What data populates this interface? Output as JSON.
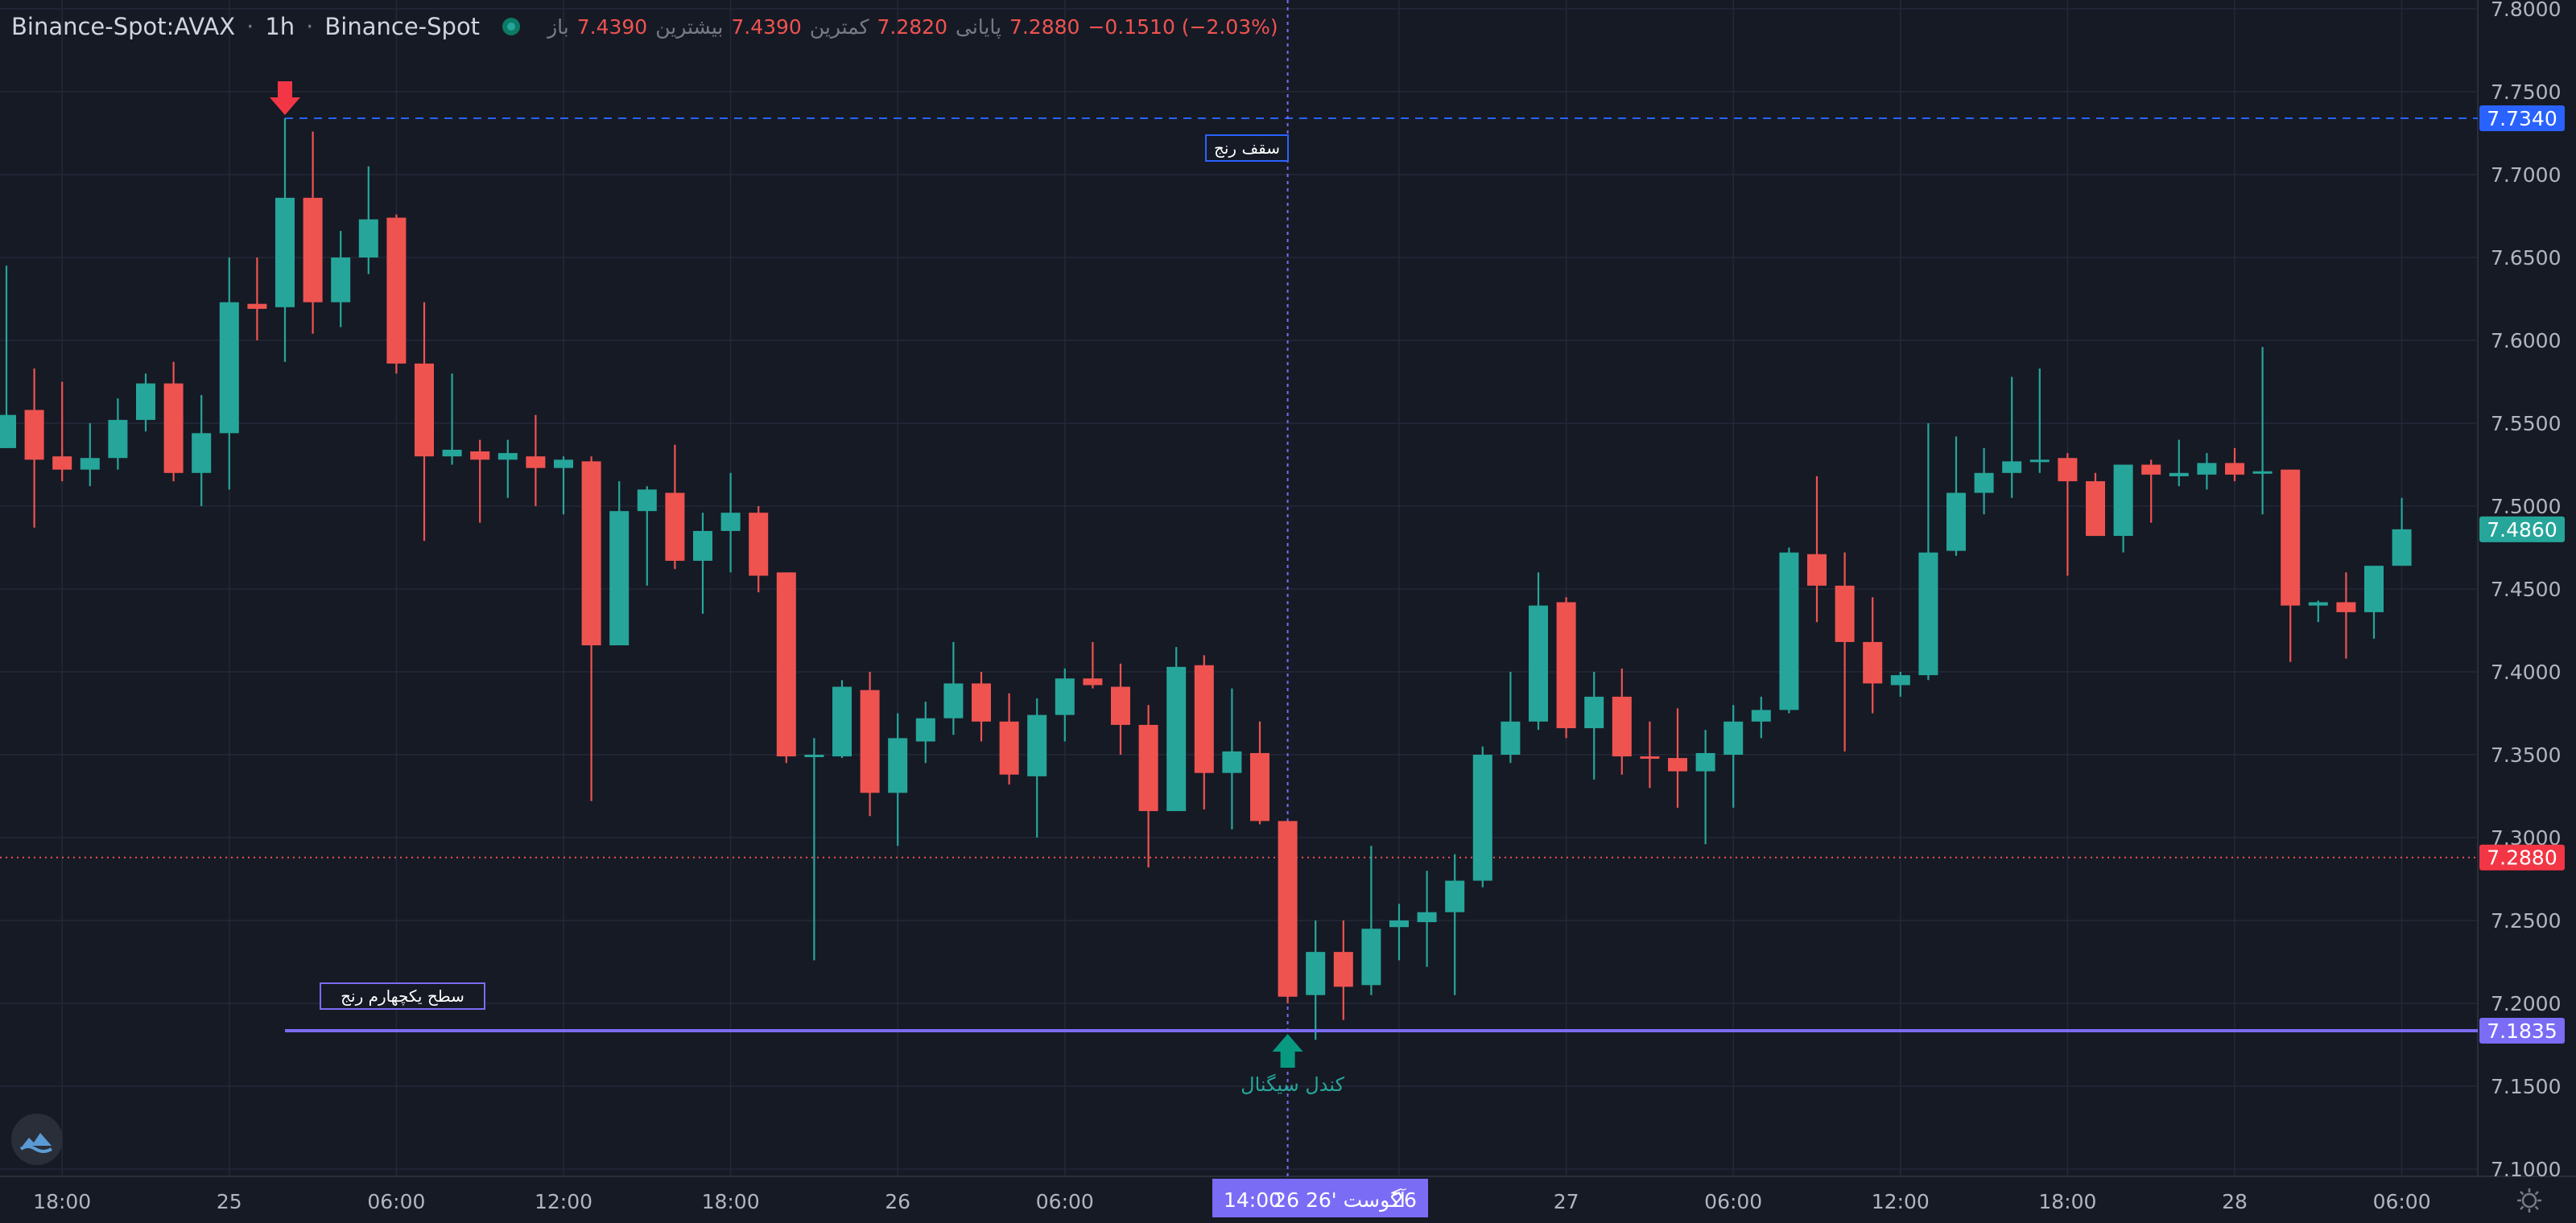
{
  "header": {
    "symbol": "Binance-Spot:AVAX",
    "interval": "1h",
    "exchange": "Binance-Spot",
    "ohlc": {
      "open_label": "باز",
      "open": "7.4390",
      "high_label": "بیشترین",
      "high": "7.4390",
      "low_label": "کمترین",
      "low": "7.2820",
      "close_label": "پایانی",
      "close": "7.2880",
      "change": "−0.1510 (−2.03%)"
    }
  },
  "colors": {
    "background": "#161a25",
    "grid": "#242838",
    "up": "#26a69a",
    "down": "#ef5350",
    "range_top": "#2962ff",
    "support": "#7b6cf6",
    "axis_text": "#b2b5be"
  },
  "icons": {
    "logo": "cloud-logo-icon",
    "settings": "gear-icon",
    "sell_arrow": "arrow-down-icon",
    "buy_arrow": "arrow-up-icon"
  },
  "annotations": {
    "range_top_label": "سقف رنج",
    "range_support_label": "سطح یکچهارم رنج",
    "signal_label": "کندل سیگنال"
  },
  "price_tags": {
    "range_top": "7.7340",
    "last": "7.4860",
    "current": "7.2880",
    "support": "7.1835"
  },
  "crosshair": {
    "time_left": "14:00",
    "date_label": "26 آگوست '26",
    "time_right": "26"
  },
  "chart_data": {
    "type": "candlestick",
    "interval": "1h",
    "ylim": [
      7.1,
      7.8
    ],
    "y_ticks": [
      "7.1000",
      "7.1500",
      "7.2000",
      "7.2500",
      "7.3000",
      "7.3500",
      "7.4000",
      "7.4500",
      "7.5000",
      "7.5500",
      "7.6000",
      "7.6500",
      "7.7000",
      "7.7500",
      "7.8000"
    ],
    "x_ticks": [
      {
        "index": 2,
        "label": "18:00"
      },
      {
        "index": 8,
        "label": "25"
      },
      {
        "index": 14,
        "label": "06:00"
      },
      {
        "index": 20,
        "label": "12:00"
      },
      {
        "index": 26,
        "label": "18:00"
      },
      {
        "index": 32,
        "label": "26"
      },
      {
        "index": 38,
        "label": "06:00"
      },
      {
        "index": 50,
        "label": "18:00"
      },
      {
        "index": 56,
        "label": "27"
      },
      {
        "index": 62,
        "label": "06:00"
      },
      {
        "index": 68,
        "label": "12:00"
      },
      {
        "index": 74,
        "label": "18:00"
      },
      {
        "index": 80,
        "label": "28"
      },
      {
        "index": 86,
        "label": "06:00"
      }
    ],
    "horizontal_lines": [
      {
        "name": "range_top",
        "price": 7.734,
        "style": "dashed"
      },
      {
        "name": "support",
        "price": 7.1835,
        "style": "solid"
      },
      {
        "name": "current",
        "price": 7.288,
        "style": "dotted"
      }
    ],
    "crosshair_index": 46,
    "markers": [
      {
        "index": 10,
        "type": "sell",
        "price": 7.734
      },
      {
        "index": 46,
        "type": "buy",
        "price": 7.1835
      }
    ],
    "candles": [
      {
        "o": 7.535,
        "h": 7.645,
        "l": 7.535,
        "c": 7.555
      },
      {
        "o": 7.558,
        "h": 7.583,
        "l": 7.487,
        "c": 7.528
      },
      {
        "o": 7.53,
        "h": 7.575,
        "l": 7.515,
        "c": 7.522
      },
      {
        "o": 7.522,
        "h": 7.55,
        "l": 7.512,
        "c": 7.529
      },
      {
        "o": 7.529,
        "h": 7.565,
        "l": 7.522,
        "c": 7.552
      },
      {
        "o": 7.552,
        "h": 7.58,
        "l": 7.545,
        "c": 7.574
      },
      {
        "o": 7.574,
        "h": 7.587,
        "l": 7.515,
        "c": 7.52
      },
      {
        "o": 7.52,
        "h": 7.567,
        "l": 7.5,
        "c": 7.544
      },
      {
        "o": 7.544,
        "h": 7.65,
        "l": 7.51,
        "c": 7.623
      },
      {
        "o": 7.622,
        "h": 7.65,
        "l": 7.6,
        "c": 7.619
      },
      {
        "o": 7.62,
        "h": 7.734,
        "l": 7.587,
        "c": 7.686
      },
      {
        "o": 7.686,
        "h": 7.726,
        "l": 7.604,
        "c": 7.623
      },
      {
        "o": 7.623,
        "h": 7.666,
        "l": 7.608,
        "c": 7.65
      },
      {
        "o": 7.65,
        "h": 7.705,
        "l": 7.64,
        "c": 7.673
      },
      {
        "o": 7.674,
        "h": 7.676,
        "l": 7.58,
        "c": 7.586
      },
      {
        "o": 7.586,
        "h": 7.623,
        "l": 7.479,
        "c": 7.53
      },
      {
        "o": 7.53,
        "h": 7.58,
        "l": 7.525,
        "c": 7.534
      },
      {
        "o": 7.533,
        "h": 7.54,
        "l": 7.49,
        "c": 7.528
      },
      {
        "o": 7.528,
        "h": 7.54,
        "l": 7.505,
        "c": 7.532
      },
      {
        "o": 7.53,
        "h": 7.555,
        "l": 7.5,
        "c": 7.523
      },
      {
        "o": 7.523,
        "h": 7.53,
        "l": 7.495,
        "c": 7.528
      },
      {
        "o": 7.527,
        "h": 7.53,
        "l": 7.322,
        "c": 7.416
      },
      {
        "o": 7.416,
        "h": 7.515,
        "l": 7.416,
        "c": 7.497
      },
      {
        "o": 7.497,
        "h": 7.512,
        "l": 7.452,
        "c": 7.51
      },
      {
        "o": 7.508,
        "h": 7.537,
        "l": 7.462,
        "c": 7.467
      },
      {
        "o": 7.467,
        "h": 7.496,
        "l": 7.435,
        "c": 7.485
      },
      {
        "o": 7.485,
        "h": 7.52,
        "l": 7.46,
        "c": 7.496
      },
      {
        "o": 7.496,
        "h": 7.5,
        "l": 7.448,
        "c": 7.458
      },
      {
        "o": 7.46,
        "h": 7.46,
        "l": 7.345,
        "c": 7.349
      },
      {
        "o": 7.349,
        "h": 7.36,
        "l": 7.226,
        "c": 7.35
      },
      {
        "o": 7.349,
        "h": 7.395,
        "l": 7.348,
        "c": 7.391
      },
      {
        "o": 7.389,
        "h": 7.4,
        "l": 7.313,
        "c": 7.327
      },
      {
        "o": 7.327,
        "h": 7.375,
        "l": 7.295,
        "c": 7.36
      },
      {
        "o": 7.358,
        "h": 7.382,
        "l": 7.345,
        "c": 7.372
      },
      {
        "o": 7.372,
        "h": 7.418,
        "l": 7.362,
        "c": 7.393
      },
      {
        "o": 7.393,
        "h": 7.4,
        "l": 7.358,
        "c": 7.37
      },
      {
        "o": 7.37,
        "h": 7.387,
        "l": 7.332,
        "c": 7.338
      },
      {
        "o": 7.337,
        "h": 7.384,
        "l": 7.3,
        "c": 7.374
      },
      {
        "o": 7.374,
        "h": 7.402,
        "l": 7.358,
        "c": 7.396
      },
      {
        "o": 7.396,
        "h": 7.418,
        "l": 7.39,
        "c": 7.392
      },
      {
        "o": 7.391,
        "h": 7.405,
        "l": 7.35,
        "c": 7.368
      },
      {
        "o": 7.368,
        "h": 7.38,
        "l": 7.282,
        "c": 7.316
      },
      {
        "o": 7.316,
        "h": 7.415,
        "l": 7.316,
        "c": 7.403
      },
      {
        "o": 7.404,
        "h": 7.41,
        "l": 7.317,
        "c": 7.339
      },
      {
        "o": 7.339,
        "h": 7.39,
        "l": 7.305,
        "c": 7.352
      },
      {
        "o": 7.351,
        "h": 7.37,
        "l": 7.308,
        "c": 7.31
      },
      {
        "o": 7.31,
        "h": 7.31,
        "l": 7.2,
        "c": 7.204
      },
      {
        "o": 7.205,
        "h": 7.25,
        "l": 7.178,
        "c": 7.231
      },
      {
        "o": 7.231,
        "h": 7.25,
        "l": 7.19,
        "c": 7.21
      },
      {
        "o": 7.211,
        "h": 7.295,
        "l": 7.205,
        "c": 7.245
      },
      {
        "o": 7.246,
        "h": 7.26,
        "l": 7.226,
        "c": 7.25
      },
      {
        "o": 7.249,
        "h": 7.28,
        "l": 7.222,
        "c": 7.255
      },
      {
        "o": 7.255,
        "h": 7.29,
        "l": 7.205,
        "c": 7.274
      },
      {
        "o": 7.274,
        "h": 7.355,
        "l": 7.27,
        "c": 7.35
      },
      {
        "o": 7.35,
        "h": 7.4,
        "l": 7.345,
        "c": 7.37
      },
      {
        "o": 7.37,
        "h": 7.46,
        "l": 7.365,
        "c": 7.44
      },
      {
        "o": 7.442,
        "h": 7.445,
        "l": 7.36,
        "c": 7.366
      },
      {
        "o": 7.366,
        "h": 7.4,
        "l": 7.335,
        "c": 7.385
      },
      {
        "o": 7.385,
        "h": 7.402,
        "l": 7.338,
        "c": 7.349
      },
      {
        "o": 7.349,
        "h": 7.37,
        "l": 7.33,
        "c": 7.348
      },
      {
        "o": 7.348,
        "h": 7.378,
        "l": 7.318,
        "c": 7.34
      },
      {
        "o": 7.34,
        "h": 7.365,
        "l": 7.296,
        "c": 7.351
      },
      {
        "o": 7.35,
        "h": 7.38,
        "l": 7.318,
        "c": 7.37
      },
      {
        "o": 7.37,
        "h": 7.385,
        "l": 7.36,
        "c": 7.377
      },
      {
        "o": 7.377,
        "h": 7.475,
        "l": 7.375,
        "c": 7.472
      },
      {
        "o": 7.471,
        "h": 7.518,
        "l": 7.43,
        "c": 7.452
      },
      {
        "o": 7.452,
        "h": 7.472,
        "l": 7.352,
        "c": 7.418
      },
      {
        "o": 7.418,
        "h": 7.445,
        "l": 7.375,
        "c": 7.393
      },
      {
        "o": 7.392,
        "h": 7.4,
        "l": 7.385,
        "c": 7.398
      },
      {
        "o": 7.398,
        "h": 7.55,
        "l": 7.395,
        "c": 7.472
      },
      {
        "o": 7.473,
        "h": 7.542,
        "l": 7.47,
        "c": 7.508
      },
      {
        "o": 7.508,
        "h": 7.535,
        "l": 7.495,
        "c": 7.52
      },
      {
        "o": 7.52,
        "h": 7.578,
        "l": 7.505,
        "c": 7.527
      },
      {
        "o": 7.527,
        "h": 7.583,
        "l": 7.52,
        "c": 7.528
      },
      {
        "o": 7.529,
        "h": 7.532,
        "l": 7.458,
        "c": 7.515
      },
      {
        "o": 7.515,
        "h": 7.52,
        "l": 7.482,
        "c": 7.482
      },
      {
        "o": 7.482,
        "h": 7.525,
        "l": 7.472,
        "c": 7.525
      },
      {
        "o": 7.525,
        "h": 7.528,
        "l": 7.49,
        "c": 7.519
      },
      {
        "o": 7.518,
        "h": 7.54,
        "l": 7.512,
        "c": 7.52
      },
      {
        "o": 7.519,
        "h": 7.532,
        "l": 7.51,
        "c": 7.526
      },
      {
        "o": 7.526,
        "h": 7.535,
        "l": 7.515,
        "c": 7.519
      },
      {
        "o": 7.52,
        "h": 7.596,
        "l": 7.495,
        "c": 7.521
      },
      {
        "o": 7.522,
        "h": 7.522,
        "l": 7.406,
        "c": 7.44
      },
      {
        "o": 7.44,
        "h": 7.443,
        "l": 7.43,
        "c": 7.442
      },
      {
        "o": 7.442,
        "h": 7.46,
        "l": 7.408,
        "c": 7.436
      },
      {
        "o": 7.436,
        "h": 7.462,
        "l": 7.42,
        "c": 7.464
      },
      {
        "o": 7.464,
        "h": 7.505,
        "l": 7.464,
        "c": 7.486
      }
    ]
  }
}
